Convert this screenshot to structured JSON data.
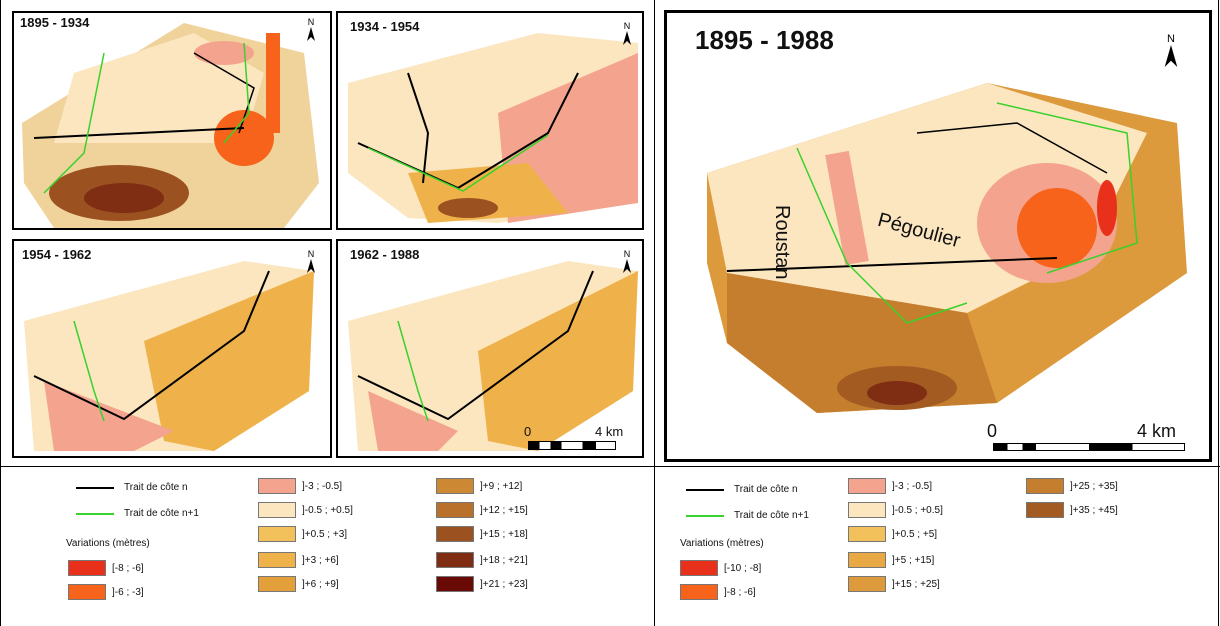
{
  "panels": {
    "p1": {
      "title": "1895 - 1934"
    },
    "p2": {
      "title": "1934 - 1954"
    },
    "p3": {
      "title": "1954 - 1962"
    },
    "p4": {
      "title": "1962 - 1988"
    },
    "big": {
      "title": "1895 - 1988"
    }
  },
  "north_label": "N",
  "place_labels": {
    "roustan": "Roustan",
    "pegoulier": "Pégoulier"
  },
  "scale_small": {
    "zero": "0",
    "end": "4 km"
  },
  "scale_big": {
    "zero": "0",
    "end": "4 km"
  },
  "legend_left": {
    "coast_n": "Trait de côte n",
    "coast_n1": "Trait de côte n+1",
    "variations": "Variations (mètres)",
    "classes": [
      {
        "label": "[-8 ; -6]",
        "color": "#e8301a"
      },
      {
        "label": "]-6 ; -3]",
        "color": "#f7631a"
      },
      {
        "label": "]-3 ; -0.5]",
        "color": "#f4a48e"
      },
      {
        "label": "]-0.5 ; +0.5]",
        "color": "#fbe6c0"
      },
      {
        "label": "]+0.5 ; +3]",
        "color": "#f3c15c"
      },
      {
        "label": "]+3 ; +6]",
        "color": "#efb24a"
      },
      {
        "label": "]+6 ; +9]",
        "color": "#e29f3a"
      },
      {
        "label": "]+9 ; +12]",
        "color": "#cd8833"
      },
      {
        "label": "]+12 ; +15]",
        "color": "#b8702a"
      },
      {
        "label": "]+15 ; +18]",
        "color": "#9c5121"
      },
      {
        "label": "]+18 ; +21]",
        "color": "#7f2e14"
      },
      {
        "label": "]+21 ; +23]",
        "color": "#6a0a07"
      }
    ]
  },
  "legend_right": {
    "coast_n": "Trait de côte n",
    "coast_n1": "Trait de côte n+1",
    "variations": "Variations (mètres)",
    "classes": [
      {
        "label": "[-10 ; -8]",
        "color": "#e8301a"
      },
      {
        "label": "]-8 ; -6]",
        "color": "#f7631a"
      },
      {
        "label": "]-3 ; -0.5]",
        "color": "#f4a48e"
      },
      {
        "label": "]-0.5 ; +0.5]",
        "color": "#fbe6c0"
      },
      {
        "label": "]+0.5 ; +5]",
        "color": "#f3c15c"
      },
      {
        "label": "]+5 ; +15]",
        "color": "#e8a945"
      },
      {
        "label": "]+15 ; +25]",
        "color": "#dc9a3c"
      },
      {
        "label": "]+25 ; +35]",
        "color": "#c47e2e"
      },
      {
        "label": "]+35 ; +45]",
        "color": "#a35b22"
      }
    ]
  },
  "colors": {
    "coast_n": "#000000",
    "coast_n1": "#39d12b"
  }
}
